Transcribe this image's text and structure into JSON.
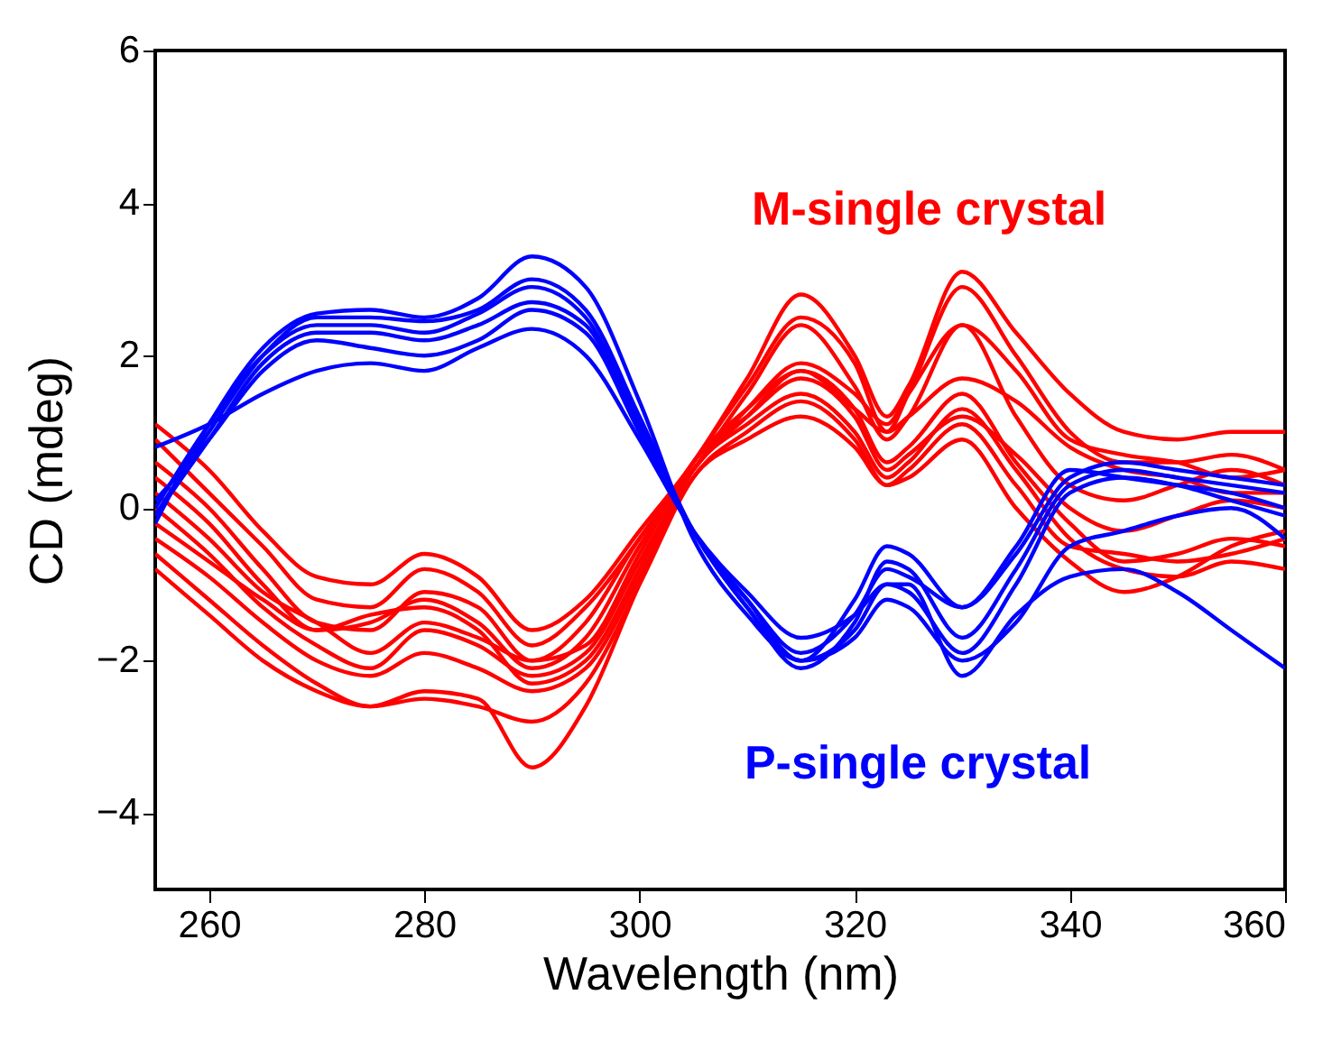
{
  "chart_data": {
    "type": "line",
    "xlabel": "Wavelength (nm)",
    "ylabel": "CD (mdeg)",
    "x": [
      255,
      260,
      265,
      270,
      275,
      280,
      285,
      290,
      295,
      300,
      305,
      310,
      315,
      320,
      323,
      325,
      330,
      335,
      340,
      345,
      350,
      355,
      360
    ],
    "xlim": [
      255,
      360
    ],
    "xticks": [
      260,
      280,
      300,
      320,
      340,
      360
    ],
    "ylim": [
      -5,
      6
    ],
    "yticks": [
      -4,
      -2,
      0,
      2,
      4,
      6
    ],
    "grid": false,
    "legend": false,
    "line_style": "solid",
    "marker": "none",
    "annotations": [
      "M-single crystal",
      "P-single crystal"
    ],
    "series": [
      {
        "color": "#ff0000",
        "values": [
          1.1,
          0.5,
          -0.3,
          -0.9,
          -1.0,
          -0.6,
          -0.9,
          -1.6,
          -1.2,
          -0.3,
          0.6,
          1.7,
          2.8,
          2.0,
          1.2,
          1.6,
          3.1,
          2.3,
          1.5,
          1.0,
          0.9,
          1.0,
          1.0
        ]
      },
      {
        "color": "#ff0000",
        "values": [
          0.9,
          0.2,
          -0.5,
          -1.2,
          -1.3,
          -0.8,
          -1.1,
          -1.8,
          -1.3,
          -0.4,
          0.6,
          1.6,
          2.5,
          1.9,
          1.0,
          1.5,
          2.9,
          2.0,
          1.0,
          0.6,
          0.6,
          0.7,
          0.5
        ]
      },
      {
        "color": "#ff0000",
        "values": [
          0.6,
          0.0,
          -0.8,
          -1.5,
          -1.6,
          -1.1,
          -1.3,
          -2.0,
          -1.5,
          -0.4,
          0.5,
          1.5,
          2.4,
          1.6,
          0.9,
          1.2,
          2.4,
          1.2,
          0.3,
          0.1,
          0.3,
          0.5,
          0.3
        ]
      },
      {
        "color": "#ff0000",
        "values": [
          0.4,
          -0.2,
          -1.0,
          -1.6,
          -1.5,
          -1.2,
          -1.5,
          -2.1,
          -1.7,
          -0.5,
          0.5,
          1.3,
          1.9,
          1.5,
          1.1,
          1.5,
          2.4,
          1.8,
          0.9,
          0.7,
          0.6,
          0.4,
          0.5
        ]
      },
      {
        "color": "#ff0000",
        "values": [
          0.2,
          -0.4,
          -1.1,
          -1.5,
          -1.9,
          -1.5,
          -1.7,
          -2.0,
          -1.8,
          -0.6,
          0.6,
          1.3,
          1.8,
          1.3,
          1.0,
          1.2,
          1.7,
          1.4,
          0.8,
          0.5,
          0.4,
          0.2,
          0.2
        ]
      },
      {
        "color": "#ff0000",
        "values": [
          0.0,
          -0.6,
          -1.3,
          -1.8,
          -2.1,
          -1.6,
          -1.8,
          -2.2,
          -1.9,
          -0.7,
          0.5,
          1.2,
          1.8,
          1.3,
          0.6,
          0.8,
          1.5,
          0.6,
          -0.2,
          -0.7,
          -0.6,
          -0.4,
          -0.5
        ]
      },
      {
        "color": "#ff0000",
        "values": [
          -0.2,
          -0.7,
          -1.2,
          -1.6,
          -1.4,
          -1.3,
          -1.6,
          -2.3,
          -2.0,
          -0.8,
          0.6,
          1.2,
          1.7,
          1.2,
          0.5,
          0.7,
          1.2,
          0.7,
          0.0,
          -0.3,
          -0.1,
          0.1,
          0.0
        ]
      },
      {
        "color": "#ff0000",
        "values": [
          -0.4,
          -0.9,
          -1.5,
          -2.0,
          -2.2,
          -1.9,
          -2.1,
          -2.4,
          -2.1,
          -0.9,
          0.5,
          1.1,
          1.5,
          1.0,
          0.4,
          0.6,
          1.3,
          0.5,
          -0.4,
          -0.8,
          -0.9,
          -0.7,
          -0.8
        ]
      },
      {
        "color": "#ff0000",
        "values": [
          -0.6,
          -1.2,
          -1.8,
          -2.3,
          -2.6,
          -2.5,
          -2.6,
          -2.8,
          -2.3,
          -1.0,
          0.4,
          1.0,
          1.4,
          0.9,
          0.3,
          0.5,
          1.1,
          0.3,
          -0.5,
          -0.6,
          -0.7,
          -0.6,
          -0.4
        ]
      },
      {
        "color": "#ff0000",
        "values": [
          -0.8,
          -1.4,
          -2.0,
          -2.4,
          -2.6,
          -2.4,
          -2.5,
          -3.4,
          -2.6,
          -1.0,
          0.4,
          0.9,
          1.2,
          0.8,
          0.3,
          0.4,
          0.9,
          0.0,
          -0.7,
          -1.1,
          -0.9,
          -0.5,
          -0.3
        ]
      },
      {
        "color": "#0000ff",
        "values": [
          -0.2,
          1.1,
          2.1,
          2.55,
          2.6,
          2.5,
          2.75,
          3.3,
          2.9,
          1.4,
          -0.4,
          -1.4,
          -2.0,
          -1.2,
          -0.5,
          -0.6,
          -1.3,
          -0.6,
          0.4,
          0.6,
          0.5,
          0.4,
          0.3
        ]
      },
      {
        "color": "#0000ff",
        "values": [
          -0.1,
          1.0,
          2.0,
          2.5,
          2.5,
          2.45,
          2.6,
          3.0,
          2.6,
          1.2,
          -0.3,
          -1.3,
          -2.1,
          -1.5,
          -0.7,
          -0.8,
          -1.7,
          -0.8,
          0.3,
          0.5,
          0.4,
          0.3,
          0.2
        ]
      },
      {
        "color": "#0000ff",
        "values": [
          0.0,
          1.1,
          2.0,
          2.4,
          2.4,
          2.3,
          2.55,
          2.9,
          2.5,
          1.1,
          -0.3,
          -1.2,
          -1.9,
          -1.4,
          -0.8,
          -0.9,
          -1.3,
          -0.5,
          0.5,
          0.4,
          0.3,
          0.2,
          0.0
        ]
      },
      {
        "color": "#0000ff",
        "values": [
          -0.1,
          0.9,
          1.9,
          2.3,
          2.3,
          2.2,
          2.4,
          2.7,
          2.4,
          1.0,
          -0.3,
          -1.2,
          -2.0,
          -1.6,
          -1.0,
          -1.1,
          -1.9,
          -1.0,
          0.2,
          0.4,
          0.3,
          0.1,
          -0.1
        ]
      },
      {
        "color": "#0000ff",
        "values": [
          0.1,
          0.9,
          1.8,
          2.2,
          2.1,
          2.0,
          2.2,
          2.6,
          2.3,
          1.0,
          -0.3,
          -1.3,
          -2.0,
          -1.7,
          -1.2,
          -1.3,
          -2.0,
          -1.5,
          -0.5,
          -0.3,
          -0.1,
          0.0,
          -0.4
        ]
      },
      {
        "color": "#0000ff",
        "values": [
          0.8,
          1.1,
          1.5,
          1.8,
          1.9,
          1.8,
          2.1,
          2.35,
          2.0,
          0.9,
          -0.3,
          -1.1,
          -1.7,
          -1.4,
          -1.0,
          -1.0,
          -2.2,
          -1.4,
          -0.9,
          -0.8,
          -1.1,
          -1.6,
          -2.1
        ]
      }
    ]
  }
}
